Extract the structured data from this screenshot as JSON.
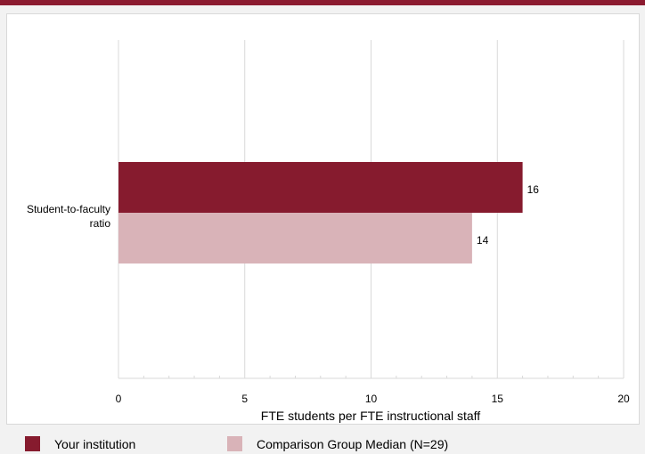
{
  "colors": {
    "accent": "#8b1a2f",
    "comparison": "#d9b3b8"
  },
  "chart_data": {
    "type": "bar",
    "orientation": "horizontal",
    "categories": [
      "Student-to-faculty ratio"
    ],
    "series": [
      {
        "name": "Your institution",
        "values": [
          16
        ],
        "color": "#861b2e"
      },
      {
        "name": "Comparison Group Median (N=29)",
        "values": [
          14
        ],
        "color": "#d9b3b8"
      }
    ],
    "data_labels": [
      "16",
      "14"
    ],
    "xlabel": "FTE students per FTE instructional staff",
    "ylabel": "",
    "xlim": [
      0,
      20
    ],
    "ticks": [
      "0",
      "5",
      "10",
      "15",
      "20"
    ],
    "grid": true,
    "legend": "bottom"
  },
  "category_label": {
    "line1": "Student-to-faculty",
    "line2": "ratio"
  }
}
